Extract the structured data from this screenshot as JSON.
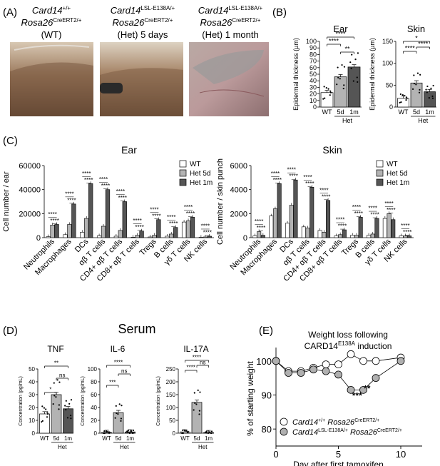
{
  "panels": {
    "A": "(A)",
    "B": "(B)",
    "C": "(C)",
    "D": "(D)",
    "E": "(E)"
  },
  "panelA": {
    "photos": [
      {
        "gene1": "Card14",
        "sup1": "+/+",
        "gene2": "Rosa26",
        "sup2": "CreERT2/+",
        "caption": "(WT)"
      },
      {
        "gene1": "Card14",
        "sup1": "LSL-E138A/+",
        "gene2": "Rosa26",
        "sup2": "CreERT2/+",
        "caption": "(Het) 5 days"
      },
      {
        "gene1": "Card14",
        "sup1": "LSL-E138A/+",
        "gene2": "Rosa26",
        "sup2": "CreERT2/+",
        "caption": "(Het) 1 month"
      }
    ]
  },
  "sig": {
    "s1": "*",
    "s2": "**",
    "s3": "***",
    "s4": "****",
    "ns": "ns"
  },
  "colors": {
    "wt": "#ffffff",
    "het5d": "#b3b3b3",
    "het1m": "#555555",
    "het_circle": "#b0b0b0",
    "line": "#8a8a8a"
  },
  "chart_data": [
    {
      "type": "bar",
      "panel": "B",
      "title": "Ear",
      "ylabel": "Epidermal thickness (µm)",
      "ylim": [
        0,
        100
      ],
      "yticks": [
        "0",
        "10",
        "20",
        "30",
        "40",
        "50",
        "60",
        "70",
        "80",
        "90",
        "100"
      ],
      "categories": [
        "WT",
        "5d",
        "1m"
      ],
      "group_label": "Het",
      "values": [
        22,
        46,
        61
      ],
      "significance": [
        "****",
        "****",
        "**"
      ]
    },
    {
      "type": "bar",
      "panel": "B",
      "title": "Skin",
      "ylabel": "Epidermal thickness (µm)",
      "ylim": [
        0,
        150
      ],
      "yticks": [
        "0",
        "50",
        "100",
        "150"
      ],
      "categories": [
        "WT",
        "5d",
        "1m"
      ],
      "group_label": "Het",
      "values": [
        20,
        55,
        35
      ],
      "significance": [
        "*",
        "****",
        "****"
      ]
    },
    {
      "type": "bar",
      "panel": "C",
      "title": "Ear",
      "ylabel": "Cell number / ear",
      "ylim": [
        0,
        60000
      ],
      "yticks": [
        "0",
        "20000",
        "40000",
        "60000"
      ],
      "categories": [
        "Neutrophils",
        "Macrophages",
        "DCs",
        "αβ T cells",
        "CD4+ αβ T cells",
        "CD8+ αβ T cells",
        "Tregs",
        "B cells",
        "γδ T cells",
        "NK cells"
      ],
      "series": [
        {
          "name": "WT",
          "values": [
            800,
            2500,
            4500,
            1500,
            1200,
            400,
            600,
            1200,
            13000,
            300
          ]
        },
        {
          "name": "Het 5d",
          "values": [
            10500,
            11000,
            16000,
            9500,
            6000,
            2000,
            2000,
            3000,
            14000,
            600
          ]
        },
        {
          "name": "Het 1m",
          "values": [
            11000,
            28000,
            45000,
            40000,
            30000,
            5500,
            15000,
            8500,
            17000,
            1200
          ]
        }
      ]
    },
    {
      "type": "bar",
      "panel": "C",
      "title": "Skin",
      "ylabel": "Cell number / skin punch",
      "ylim": [
        0,
        6000
      ],
      "yticks": [
        "0",
        "2000",
        "4000",
        "6000"
      ],
      "categories": [
        "Neutrophils",
        "Macrophages",
        "DCs",
        "αβ T cells",
        "CD4+ αβ T cells",
        "CD8+ αβ T cells",
        "Tregs",
        "B cells",
        "γδ T cells",
        "NK cells"
      ],
      "series": [
        {
          "name": "WT",
          "values": [
            150,
            1800,
            1200,
            900,
            600,
            150,
            200,
            200,
            1600,
            150
          ]
        },
        {
          "name": "Het 5d",
          "values": [
            500,
            2400,
            2700,
            800,
            450,
            250,
            200,
            300,
            2000,
            150
          ]
        },
        {
          "name": "Het 1m",
          "values": [
            200,
            4500,
            4800,
            4200,
            3100,
            650,
            1700,
            1600,
            1500,
            150
          ]
        }
      ]
    },
    {
      "type": "bar",
      "panel": "D",
      "title": "TNF",
      "supertitle": "Serum",
      "ylabel": "Concentration (pg/mL)",
      "ylim": [
        0,
        50
      ],
      "yticks": [
        "0",
        "10",
        "20",
        "30",
        "40",
        "50"
      ],
      "categories": [
        "WT",
        "5d",
        "1m"
      ],
      "group_label": "Het",
      "values": [
        15,
        30,
        19
      ],
      "significance": [
        "**",
        "*",
        "ns"
      ]
    },
    {
      "type": "bar",
      "panel": "D",
      "title": "IL-6",
      "ylabel": "Concentration (pg/mL)",
      "ylim": [
        0,
        100
      ],
      "yticks": [
        "0",
        "20",
        "40",
        "60",
        "80",
        "100"
      ],
      "categories": [
        "WT",
        "5d",
        "1m"
      ],
      "group_label": "Het",
      "values": [
        1,
        32,
        2
      ],
      "significance": [
        "****",
        "***",
        "ns"
      ]
    },
    {
      "type": "bar",
      "panel": "D",
      "title": "IL-17A",
      "ylabel": "Concentration (pg/mL)",
      "ylim": [
        0,
        250
      ],
      "yticks": [
        "0",
        "50",
        "100",
        "150",
        "200",
        "250"
      ],
      "categories": [
        "WT",
        "5d",
        "1m"
      ],
      "group_label": "Het",
      "values": [
        5,
        120,
        2
      ],
      "significance": [
        "****",
        "****",
        "ns"
      ]
    },
    {
      "type": "line",
      "panel": "E",
      "title": "Weight loss following",
      "title_line2": "CARD14",
      "title_sup": "E138A",
      "title_end": " induction",
      "xlabel": "Day after first tamoxifen",
      "ylabel": "% of starting weight",
      "xlim": [
        0,
        10
      ],
      "ylim": [
        75,
        105
      ],
      "xticks": [
        "0",
        "5",
        "10"
      ],
      "yticks": [
        "80",
        "90",
        "100"
      ],
      "legend": [
        {
          "g1": "Card14",
          "s1": "+/+",
          "g2": " Rosa26",
          "s2": "CreERT2/+"
        },
        {
          "g1": "Card14",
          "s1": "LSL-E138A/+",
          "g2": " Rosa26",
          "s2": "CreERT2/+"
        }
      ],
      "series": [
        {
          "name": "WT",
          "x": [
            0,
            1,
            2,
            3,
            4,
            5,
            6,
            7,
            8,
            10
          ],
          "y": [
            100,
            97,
            97,
            98,
            99,
            99,
            102,
            100,
            100,
            101
          ]
        },
        {
          "name": "Het",
          "x": [
            0,
            1,
            2,
            3,
            4,
            5,
            6,
            7,
            8,
            10
          ],
          "y": [
            100,
            96.5,
            96.5,
            97.5,
            97,
            96,
            91.5,
            91.5,
            95,
            100
          ]
        }
      ],
      "annotations": [
        {
          "x": 6.5,
          "y": 89,
          "text": "***"
        },
        {
          "x": 7.3,
          "y": 91,
          "text": "**"
        }
      ]
    }
  ]
}
